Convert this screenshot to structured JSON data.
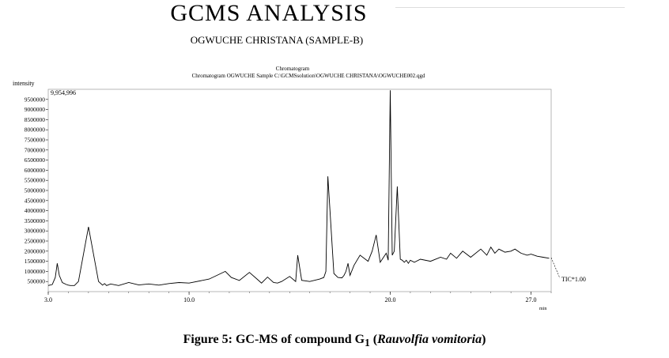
{
  "header": {
    "title": "GCMS ANALYSIS",
    "subtitle": "OGWUCHE CHRISTANA (SAMPLE-B)"
  },
  "chart_head": {
    "line1": "Chromatogram",
    "line2": "Chromatogram OGWUCHE Sample C:\\GCMSsolution\\OGWUCHE CHRISTANA\\OGWUCHE002.qgd"
  },
  "caption": {
    "prefix": "Figure 5: GC-MS of compound G",
    "subscript": "1",
    "open": " (",
    "italic": "Rauvolfia vomitoria",
    "close": ")"
  },
  "chart_data": {
    "type": "line",
    "ylabel": "intensity",
    "xlabel": "min",
    "max_label": "9,954,996",
    "trace_label": "TIC*1.00",
    "xlim": [
      3.0,
      28.0
    ],
    "ylim": [
      0,
      10000000
    ],
    "x_ticks": [
      3.0,
      10.0,
      20.0,
      27.0
    ],
    "x_tick_labels": [
      "3.0",
      "10.0",
      "20.0",
      "27.0"
    ],
    "y_ticks": [
      500000,
      1000000,
      1500000,
      2000000,
      2500000,
      3000000,
      3500000,
      4000000,
      4500000,
      5000000,
      5500000,
      6000000,
      6500000,
      7000000,
      7500000,
      8000000,
      8500000,
      9000000,
      9500000
    ],
    "y_tick_labels": [
      "500000",
      "1000000",
      "1500000",
      "2000000",
      "2500000",
      "3000000",
      "3500000",
      "4000000",
      "4500000",
      "5000000",
      "5500000",
      "6000000",
      "6500000",
      "7000000",
      "7500000",
      "8000000",
      "8500000",
      "9000000",
      "9500000"
    ],
    "x": [
      3.0,
      3.2,
      3.35,
      3.45,
      3.55,
      3.7,
      3.9,
      4.0,
      4.1,
      4.3,
      4.5,
      5.0,
      5.5,
      5.7,
      5.8,
      5.9,
      6.1,
      6.5,
      7.0,
      7.5,
      8.0,
      8.5,
      9.0,
      9.5,
      10.0,
      11.0,
      11.8,
      12.1,
      12.5,
      13.0,
      13.4,
      13.6,
      13.9,
      14.2,
      14.4,
      14.6,
      15.0,
      15.3,
      15.4,
      15.6,
      16.0,
      16.5,
      16.7,
      16.8,
      16.9,
      17.2,
      17.4,
      17.6,
      17.7,
      17.8,
      17.9,
      18.0,
      18.2,
      18.5,
      18.9,
      19.1,
      19.3,
      19.5,
      19.8,
      19.9,
      20.0,
      20.1,
      20.2,
      20.35,
      20.5,
      20.6,
      20.7,
      20.8,
      20.9,
      21.0,
      21.2,
      21.5,
      22.0,
      22.5,
      22.8,
      23.0,
      23.3,
      23.6,
      24.0,
      24.5,
      24.8,
      25.0,
      25.2,
      25.4,
      25.7,
      26.0,
      26.2,
      26.5,
      26.8,
      27.0,
      27.3,
      27.6,
      27.9
    ],
    "y": [
      300000,
      350000,
      700000,
      1400000,
      800000,
      450000,
      350000,
      320000,
      300000,
      300000,
      500000,
      3200000,
      500000,
      320000,
      400000,
      300000,
      380000,
      300000,
      450000,
      330000,
      380000,
      320000,
      400000,
      450000,
      420000,
      620000,
      1000000,
      700000,
      550000,
      950000,
      600000,
      420000,
      720000,
      450000,
      420000,
      500000,
      750000,
      500000,
      1800000,
      560000,
      500000,
      620000,
      700000,
      1000000,
      5700000,
      900000,
      700000,
      680000,
      800000,
      1000000,
      1400000,
      800000,
      1300000,
      1800000,
      1500000,
      2000000,
      2800000,
      1450000,
      1900000,
      1550000,
      9950000,
      1800000,
      2000000,
      5200000,
      1600000,
      1550000,
      1450000,
      1550000,
      1400000,
      1550000,
      1450000,
      1600000,
      1500000,
      1700000,
      1600000,
      1900000,
      1650000,
      2000000,
      1700000,
      2100000,
      1800000,
      2200000,
      1900000,
      2100000,
      1950000,
      2000000,
      2100000,
      1900000,
      1800000,
      1850000,
      1750000,
      1700000,
      1650000
    ]
  }
}
